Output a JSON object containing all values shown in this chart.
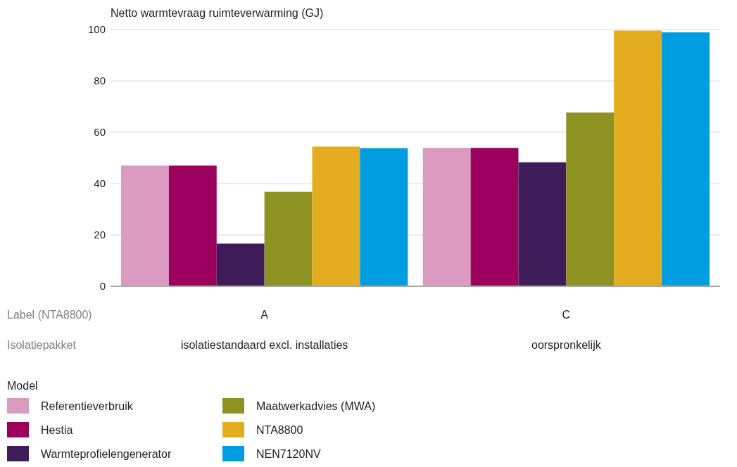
{
  "chart_data": {
    "type": "bar",
    "ylabel": "Netto warmtevraag ruimteverwarming (GJ)",
    "categories": [
      "A",
      "C"
    ],
    "series": [
      {
        "name": "Referentieverbruik",
        "color": "#db9bc1",
        "values": [
          47,
          53.9
        ]
      },
      {
        "name": "Hestia",
        "color": "#9c005e",
        "values": [
          47,
          53.9
        ]
      },
      {
        "name": "Warmteprofielengenerator",
        "color": "#3e1c5a",
        "values": [
          16.6,
          48.3
        ]
      },
      {
        "name": "Maatwerkadvies (MWA)",
        "color": "#8e9223",
        "values": [
          36.8,
          67.7
        ]
      },
      {
        "name": "NTA8800",
        "color": "#e4ad1f",
        "values": [
          54.4,
          99.6
        ]
      },
      {
        "name": "NEN7120NV",
        "color": "#009ee0",
        "values": [
          53.8,
          98.9
        ]
      }
    ],
    "ylim": [
      0,
      100
    ],
    "yticks": [
      0,
      20,
      40,
      60,
      80,
      100
    ],
    "grid": "y",
    "legend": "bottom",
    "legend_title": "Model",
    "annotations": [
      "Label (NTA8800)",
      "Isolatiepakket",
      "isolatiestandaard excl. installaties",
      "oorspronkelijk"
    ]
  }
}
